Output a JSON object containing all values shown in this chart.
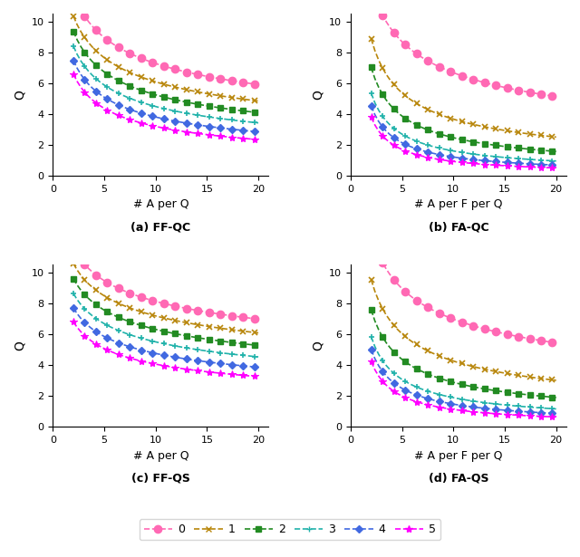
{
  "subplot_titles": [
    "(a) FF-QC",
    "(b) FA-QC",
    "(c) FF-QS",
    "(d) FA-QS"
  ],
  "xlabels": [
    "# A per Q",
    "# A per F per Q",
    "# A per Q",
    "# A per F per Q"
  ],
  "ylabel": "Q",
  "series_labels": [
    "0",
    "1",
    "2",
    "3",
    "4",
    "5"
  ],
  "series_colors": [
    "#FF69B4",
    "#B8860B",
    "#228B22",
    "#20B2AA",
    "#4169E1",
    "#FF00FF"
  ],
  "series_markers": [
    "o",
    "x",
    "s",
    "+",
    "D",
    "*"
  ],
  "xlim": [
    1,
    20
  ],
  "ylim": [
    0,
    10
  ],
  "yticks": [
    0,
    2,
    4,
    6,
    8,
    10
  ],
  "xticks": [
    0,
    5,
    10,
    15,
    20
  ],
  "ff_qc": {
    "params": [
      {
        "a": 14.5,
        "b": 0.3
      },
      {
        "a": 13.0,
        "b": 0.33
      },
      {
        "a": 12.0,
        "b": 0.36
      },
      {
        "a": 11.0,
        "b": 0.39
      },
      {
        "a": 10.0,
        "b": 0.42
      },
      {
        "a": 9.0,
        "b": 0.45
      }
    ]
  },
  "fa_qc": {
    "params": [
      {
        "a": 16.0,
        "b": 0.38
      },
      {
        "a": 13.0,
        "b": 0.55
      },
      {
        "a": 11.0,
        "b": 0.65
      },
      {
        "a": 9.0,
        "b": 0.75
      },
      {
        "a": 8.0,
        "b": 0.82
      },
      {
        "a": 7.0,
        "b": 0.88
      }
    ]
  },
  "ff_qs": {
    "params": [
      {
        "a": 13.5,
        "b": 0.22
      },
      {
        "a": 12.5,
        "b": 0.24
      },
      {
        "a": 11.5,
        "b": 0.26
      },
      {
        "a": 10.5,
        "b": 0.28
      },
      {
        "a": 9.5,
        "b": 0.3
      },
      {
        "a": 8.5,
        "b": 0.32
      }
    ]
  },
  "fa_qs": {
    "params": [
      {
        "a": 16.0,
        "b": 0.36
      },
      {
        "a": 13.5,
        "b": 0.5
      },
      {
        "a": 11.5,
        "b": 0.6
      },
      {
        "a": 9.5,
        "b": 0.7
      },
      {
        "a": 8.5,
        "b": 0.76
      },
      {
        "a": 7.5,
        "b": 0.82
      }
    ]
  },
  "x_start": 2,
  "x_end": 20,
  "n_points": 50,
  "markersize_circle": 6,
  "markersize_other": 5,
  "linewidth": 1.2
}
